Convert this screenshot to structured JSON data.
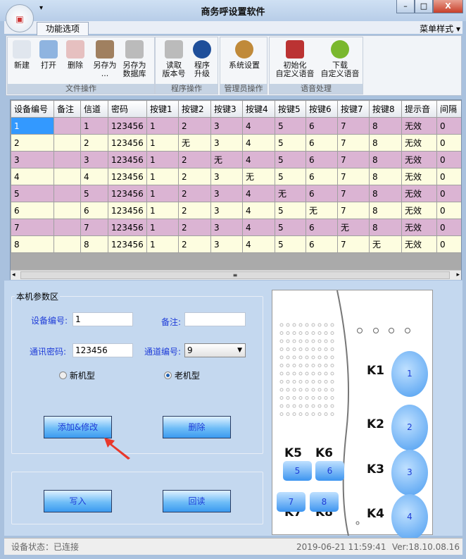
{
  "window": {
    "title": "商务呼设置软件",
    "logo_text": "MFC",
    "minimize": "–",
    "maximize": "□",
    "close": "X",
    "qat_arrow": "▾"
  },
  "ribbon": {
    "tab": "功能选项",
    "menu_style": "菜单样式",
    "menu_arrow": "▾",
    "groups": [
      {
        "label": "文件操作",
        "buttons": [
          {
            "label": "新建",
            "icon": "new-doc-icon"
          },
          {
            "label": "打开",
            "icon": "open-search-icon"
          },
          {
            "label": "删除",
            "icon": "delete-doc-icon"
          },
          {
            "label": "另存为\n...",
            "icon": "save-as-box-icon"
          },
          {
            "label": "另存为\n数据库",
            "icon": "gear-arrow-icon"
          }
        ]
      },
      {
        "label": "程序操作",
        "buttons": [
          {
            "label": "读取\n版本号",
            "icon": "gear-arrow-icon"
          },
          {
            "label": "程序\n升级",
            "icon": "clock-icon"
          }
        ]
      },
      {
        "label": "管理员操作",
        "buttons": [
          {
            "label": "系统设置",
            "icon": "users-icon"
          }
        ]
      },
      {
        "label": "语音处理",
        "buttons": [
          {
            "label": "初始化\n自定义语音",
            "icon": "speaker-icon"
          },
          {
            "label": "下载\n自定义语音",
            "icon": "disc-icon"
          }
        ]
      }
    ]
  },
  "table": {
    "headers": [
      "设备编号",
      "备注",
      "信道",
      "密码",
      "按键1",
      "按键2",
      "按键3",
      "按键4",
      "按键5",
      "按键6",
      "按键7",
      "按键8",
      "提示音",
      "间隔"
    ],
    "rows": [
      [
        "1",
        "",
        "1",
        "123456",
        "1",
        "2",
        "3",
        "4",
        "5",
        "6",
        "7",
        "8",
        "无效",
        "0"
      ],
      [
        "2",
        "",
        "2",
        "123456",
        "1",
        "无",
        "3",
        "4",
        "5",
        "6",
        "7",
        "8",
        "无效",
        "0"
      ],
      [
        "3",
        "",
        "3",
        "123456",
        "1",
        "2",
        "无",
        "4",
        "5",
        "6",
        "7",
        "8",
        "无效",
        "0"
      ],
      [
        "4",
        "",
        "4",
        "123456",
        "1",
        "2",
        "3",
        "无",
        "5",
        "6",
        "7",
        "8",
        "无效",
        "0"
      ],
      [
        "5",
        "",
        "5",
        "123456",
        "1",
        "2",
        "3",
        "4",
        "无",
        "6",
        "7",
        "8",
        "无效",
        "0"
      ],
      [
        "6",
        "",
        "6",
        "123456",
        "1",
        "2",
        "3",
        "4",
        "5",
        "无",
        "7",
        "8",
        "无效",
        "0"
      ],
      [
        "7",
        "",
        "7",
        "123456",
        "1",
        "2",
        "3",
        "4",
        "5",
        "6",
        "无",
        "8",
        "无效",
        "0"
      ],
      [
        "8",
        "",
        "8",
        "123456",
        "1",
        "2",
        "3",
        "4",
        "5",
        "6",
        "7",
        "无",
        "无效",
        "0"
      ]
    ],
    "row_colors": [
      "#dbb4d3",
      "#fdfde0"
    ],
    "scroll_grip": "≡"
  },
  "params": {
    "legend": "本机参数区",
    "device_no_label": "设备编号:",
    "device_no": "1",
    "note_label": "备注:",
    "note": "",
    "password_label": "通讯密码:",
    "password": "123456",
    "channel_label": "通道编号:",
    "channel": "9",
    "new_model": "新机型",
    "old_model": "老机型",
    "selected_model": "老机型",
    "add_modify": "添加&修改",
    "delete": "删除",
    "write": "写入",
    "readback": "回读"
  },
  "device": {
    "keys": [
      {
        "label": "K1",
        "num": "1"
      },
      {
        "label": "K2",
        "num": "2"
      },
      {
        "label": "K3",
        "num": "3"
      },
      {
        "label": "K4",
        "num": "4"
      },
      {
        "label": "K5",
        "num": "5"
      },
      {
        "label": "K6",
        "num": "6"
      },
      {
        "label": "K7",
        "num": "7"
      },
      {
        "label": "K8",
        "num": "8"
      }
    ]
  },
  "status": {
    "state": "设备状态：已连接",
    "datetime": "2019-06-21 11:59:41",
    "version": "Ver:18.10.08.16"
  },
  "colors": {
    "accent": "#1f3dd8",
    "button": "#3a9af0",
    "arrow": "#e8382b"
  }
}
